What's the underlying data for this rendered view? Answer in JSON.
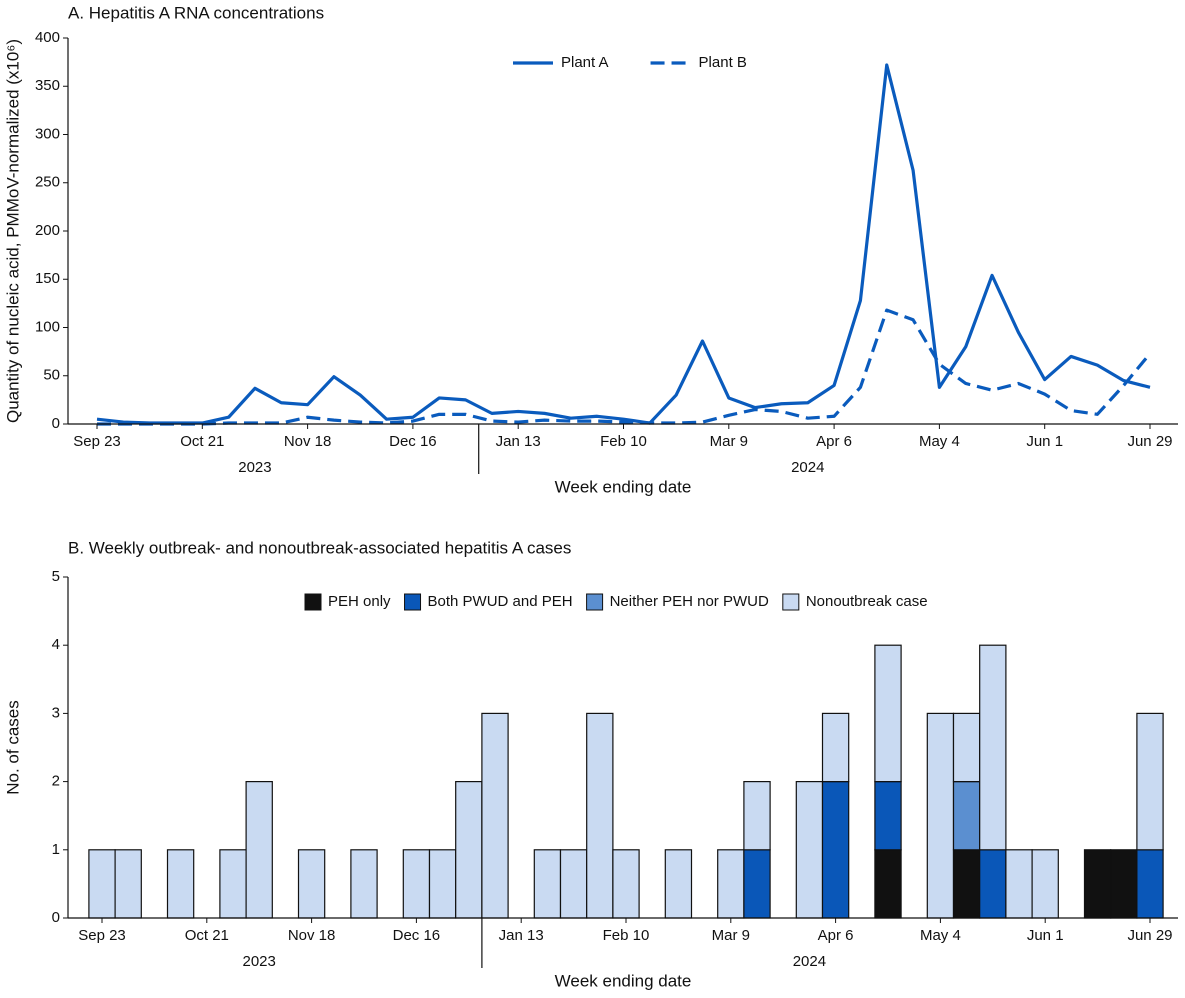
{
  "chart_data": [
    {
      "type": "line",
      "title": "A. Hepatitis A RNA concentrations",
      "y_label": "Quantity of nucleic acid, PMMoV-normalized (x10⁶)",
      "x_label": "Week ending date",
      "x_groups": [
        "2023",
        "2024"
      ],
      "categories": [
        "Sep 23",
        null,
        null,
        null,
        "Oct 21",
        null,
        null,
        null,
        "Nov 18",
        null,
        null,
        null,
        "Dec 16",
        null,
        null,
        null,
        "Jan 13",
        null,
        null,
        null,
        "Feb 10",
        null,
        null,
        null,
        "Mar 9",
        null,
        null,
        null,
        "Apr 6",
        null,
        null,
        null,
        "May 4",
        null,
        null,
        null,
        "Jun 1",
        null,
        null,
        null,
        "Jun 29"
      ],
      "series": [
        {
          "name": "Plant A",
          "color": "#0a5bbd",
          "line_style": "solid",
          "values": [
            5,
            2,
            1,
            1,
            1,
            7,
            37,
            22,
            20,
            49,
            30,
            5,
            7,
            27,
            25,
            11,
            13,
            11,
            6,
            8,
            5,
            1,
            30,
            86,
            27,
            17,
            21,
            22,
            40,
            128,
            372,
            263,
            38,
            80,
            154,
            95,
            46,
            70,
            61,
            45,
            38
          ]
        },
        {
          "name": "Plant B",
          "color": "#0a5bbd",
          "line_style": "dashed",
          "values": [
            0,
            0,
            0,
            0,
            0,
            1,
            1,
            1,
            7,
            4,
            2,
            1,
            3,
            10,
            10,
            3,
            2,
            4,
            3,
            3,
            2,
            1,
            1,
            2,
            9,
            15,
            13,
            6,
            8,
            38,
            118,
            108,
            62,
            42,
            35,
            42,
            31,
            14,
            10,
            40,
            73
          ]
        }
      ],
      "ylim": [
        0,
        400
      ],
      "yticks": [
        0,
        50,
        100,
        150,
        200,
        250,
        300,
        350,
        400
      ]
    },
    {
      "type": "bar",
      "stacked": true,
      "title": "B. Weekly outbreak- and nonoutbreak-associated hepatitis A cases",
      "y_label": "No. of cases",
      "x_label": "Week ending date",
      "x_groups": [
        "2023",
        "2024"
      ],
      "categories": [
        "Sep 23",
        null,
        null,
        null,
        "Oct 21",
        null,
        null,
        null,
        "Nov 18",
        null,
        null,
        null,
        "Dec 16",
        null,
        null,
        null,
        "Jan 13",
        null,
        null,
        null,
        "Feb 10",
        null,
        null,
        null,
        "Mar 9",
        null,
        null,
        null,
        "Apr 6",
        null,
        null,
        null,
        "May 4",
        null,
        null,
        null,
        "Jun 1",
        null,
        null,
        null,
        "Jun 29"
      ],
      "series": [
        {
          "name": "PEH only",
          "color": "#111111",
          "values": [
            0,
            0,
            0,
            0,
            0,
            0,
            0,
            0,
            0,
            0,
            0,
            0,
            0,
            0,
            0,
            0,
            0,
            0,
            0,
            0,
            0,
            0,
            0,
            0,
            0,
            0,
            0,
            0,
            0,
            0,
            1,
            0,
            0,
            1,
            0,
            0,
            0,
            0,
            1,
            1,
            0
          ]
        },
        {
          "name": "Both PWUD and PEH",
          "color": "#0a57b8",
          "values": [
            0,
            0,
            0,
            0,
            0,
            0,
            0,
            0,
            0,
            0,
            0,
            0,
            0,
            0,
            0,
            0,
            0,
            0,
            0,
            0,
            0,
            0,
            0,
            0,
            0,
            1,
            0,
            0,
            2,
            0,
            1,
            0,
            0,
            0,
            1,
            0,
            0,
            0,
            0,
            0,
            1
          ]
        },
        {
          "name": "Neither PEH nor PWUD",
          "color": "#5b8fd0",
          "values": [
            0,
            0,
            0,
            0,
            0,
            0,
            0,
            0,
            0,
            0,
            0,
            0,
            0,
            0,
            0,
            0,
            0,
            0,
            0,
            0,
            0,
            0,
            0,
            0,
            0,
            0,
            0,
            0,
            0,
            0,
            0,
            0,
            0,
            1,
            0,
            0,
            0,
            0,
            0,
            0,
            0
          ]
        },
        {
          "name": "Nonoutbreak case",
          "color": "#c9daf2",
          "values": [
            1,
            1,
            0,
            1,
            0,
            1,
            2,
            0,
            1,
            0,
            1,
            0,
            1,
            1,
            2,
            3,
            0,
            1,
            1,
            3,
            1,
            0,
            1,
            0,
            1,
            1,
            0,
            2,
            1,
            0,
            2,
            0,
            3,
            1,
            3,
            1,
            1,
            0,
            0,
            0,
            2
          ]
        }
      ],
      "ylim": [
        0,
        5
      ],
      "yticks": [
        0,
        1,
        2,
        3,
        4,
        5
      ]
    }
  ]
}
